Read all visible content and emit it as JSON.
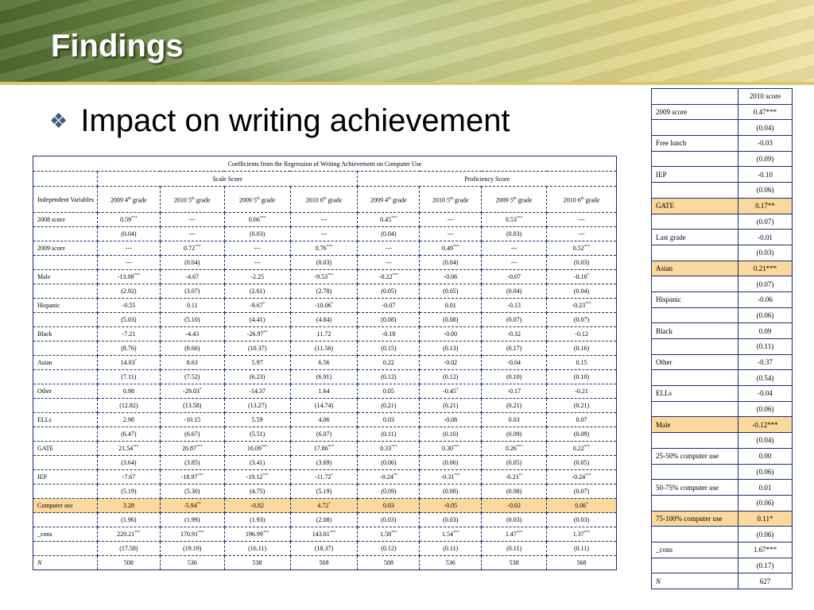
{
  "slide": {
    "title": "Findings",
    "bullet_icon": "diamond-bullet-icon",
    "bullet": "Impact on writing achievement",
    "accent": "#3c5a82",
    "highlight": "#fbd89b"
  },
  "main_table": {
    "caption": "Coefficients from the Regression of Writing Achievement on Computer Use",
    "groups": [
      "Scale Score",
      "Proficiency Score"
    ],
    "header": {
      "label": "Independent Variables",
      "columns": [
        {
          "pre": "2009 4",
          "sup": "th",
          "post": " grade"
        },
        {
          "pre": "2010 5",
          "sup": "th",
          "post": " grade"
        },
        {
          "pre": "2009 5",
          "sup": "th",
          "post": " grade"
        },
        {
          "pre": "2010 6",
          "sup": "th",
          "post": " grade"
        },
        {
          "pre": "2009 4",
          "sup": "th",
          "post": " grade"
        },
        {
          "pre": "2010 5",
          "sup": "th",
          "post": " grade"
        },
        {
          "pre": "2009 5",
          "sup": "th",
          "post": " grade"
        },
        {
          "pre": "2010 6",
          "sup": "th",
          "post": " grade"
        }
      ]
    },
    "rows": [
      {
        "label": "2008 score",
        "cells": [
          [
            "0.59",
            "***"
          ],
          [
            "---",
            ""
          ],
          [
            "0.66",
            "***"
          ],
          [
            "---",
            ""
          ],
          [
            "0.45",
            "***"
          ],
          [
            "---",
            ""
          ],
          [
            "0.53",
            "***"
          ],
          [
            "---",
            ""
          ]
        ]
      },
      {
        "label": "",
        "cells": [
          [
            "(0.04)",
            ""
          ],
          [
            "---",
            ""
          ],
          [
            "(0.03)",
            ""
          ],
          [
            "---",
            ""
          ],
          [
            "(0.04)",
            ""
          ],
          [
            "---",
            ""
          ],
          [
            "(0.03)",
            ""
          ],
          [
            "---",
            ""
          ]
        ]
      },
      {
        "label": "2009 score",
        "cells": [
          [
            "---",
            ""
          ],
          [
            "0.72",
            "***"
          ],
          [
            "---",
            ""
          ],
          [
            "0.76",
            "***"
          ],
          [
            "---",
            ""
          ],
          [
            "0.49",
            "***"
          ],
          [
            "---",
            ""
          ],
          [
            "0.52",
            "***"
          ]
        ]
      },
      {
        "label": "",
        "cells": [
          [
            "---",
            ""
          ],
          [
            "(0.04)",
            ""
          ],
          [
            "---",
            ""
          ],
          [
            "(0.03)",
            ""
          ],
          [
            "---",
            ""
          ],
          [
            "(0.04)",
            ""
          ],
          [
            "---",
            ""
          ],
          [
            "(0.03)",
            ""
          ]
        ]
      },
      {
        "label": "Male",
        "cells": [
          [
            "-13.08",
            "***"
          ],
          [
            "-4.67",
            ""
          ],
          [
            "-2.25",
            ""
          ],
          [
            "-9.53",
            "***"
          ],
          [
            "-0.22",
            "***"
          ],
          [
            "-0.06",
            ""
          ],
          [
            "-0.07",
            ""
          ],
          [
            "-0.10",
            "*"
          ]
        ]
      },
      {
        "label": "",
        "cells": [
          [
            "(2.92)",
            ""
          ],
          [
            "(3.07)",
            ""
          ],
          [
            "(2.61)",
            ""
          ],
          [
            "(2.78)",
            ""
          ],
          [
            "(0.05)",
            ""
          ],
          [
            "(0.05)",
            ""
          ],
          [
            "(0.04)",
            ""
          ],
          [
            "(0.04)",
            ""
          ]
        ]
      },
      {
        "label": "Hispanic",
        "cells": [
          [
            "-0.55",
            ""
          ],
          [
            "0.11",
            ""
          ],
          [
            "-9.67",
            "*"
          ],
          [
            "-10.06",
            "*"
          ],
          [
            "-0.07",
            ""
          ],
          [
            "0.01",
            ""
          ],
          [
            "-0.13",
            ""
          ],
          [
            "-0.23",
            "***"
          ]
        ]
      },
      {
        "label": "",
        "cells": [
          [
            "(5.03)",
            ""
          ],
          [
            "(5.10)",
            ""
          ],
          [
            "(4.41)",
            ""
          ],
          [
            "(4.84)",
            ""
          ],
          [
            "(0.08)",
            ""
          ],
          [
            "(0.08)",
            ""
          ],
          [
            "(0.07)",
            ""
          ],
          [
            "(0.07)",
            ""
          ]
        ]
      },
      {
        "label": "Black",
        "cells": [
          [
            "-7.21",
            ""
          ],
          [
            "-4.43",
            ""
          ],
          [
            "-26.97",
            "**"
          ],
          [
            "11.72",
            ""
          ],
          [
            "-0.18",
            ""
          ],
          [
            "-0.00",
            ""
          ],
          [
            "-0.32",
            ""
          ],
          [
            "-0.12",
            ""
          ]
        ]
      },
      {
        "label": "",
        "cells": [
          [
            "(8.76)",
            ""
          ],
          [
            "(8.66)",
            ""
          ],
          [
            "(10.37)",
            ""
          ],
          [
            "(11.56)",
            ""
          ],
          [
            "(0.15)",
            ""
          ],
          [
            "(0.13)",
            ""
          ],
          [
            "(0.17)",
            ""
          ],
          [
            "(0.16)",
            ""
          ]
        ]
      },
      {
        "label": "Asian",
        "cells": [
          [
            "14.03",
            "*"
          ],
          [
            "8.63",
            ""
          ],
          [
            "5.97",
            ""
          ],
          [
            "6.56",
            ""
          ],
          [
            "0.22",
            ""
          ],
          [
            "-0.02",
            ""
          ],
          [
            "-0.04",
            ""
          ],
          [
            "0.15",
            ""
          ]
        ]
      },
      {
        "label": "",
        "cells": [
          [
            "(7.11)",
            ""
          ],
          [
            "(7.52)",
            ""
          ],
          [
            "(6.23)",
            ""
          ],
          [
            "(6.91)",
            ""
          ],
          [
            "(0.12)",
            ""
          ],
          [
            "(0.12)",
            ""
          ],
          [
            "(0.10)",
            ""
          ],
          [
            "(0.10)",
            ""
          ]
        ]
      },
      {
        "label": "Other",
        "cells": [
          [
            "0.98",
            ""
          ],
          [
            "-29.03",
            "*"
          ],
          [
            "-14.37",
            ""
          ],
          [
            "1.64",
            ""
          ],
          [
            "0.05",
            ""
          ],
          [
            "-0.45",
            "*"
          ],
          [
            "-0.17",
            ""
          ],
          [
            "-0.21",
            ""
          ]
        ]
      },
      {
        "label": "",
        "cells": [
          [
            "(12.82)",
            ""
          ],
          [
            "(13.58)",
            ""
          ],
          [
            "(13.27)",
            ""
          ],
          [
            "(14.74)",
            ""
          ],
          [
            "(0.21)",
            ""
          ],
          [
            "(0.21)",
            ""
          ],
          [
            "(0.21)",
            ""
          ],
          [
            "(0.21)",
            ""
          ]
        ]
      },
      {
        "label": "ELLs",
        "cells": [
          [
            "2.98",
            ""
          ],
          [
            "-10.15",
            ""
          ],
          [
            "5.59",
            ""
          ],
          [
            "4.06",
            ""
          ],
          [
            "0.03",
            ""
          ],
          [
            "-0.08",
            ""
          ],
          [
            "0.03",
            ""
          ],
          [
            "0.07",
            ""
          ]
        ]
      },
      {
        "label": "",
        "cells": [
          [
            "(6.47)",
            ""
          ],
          [
            "(6.67)",
            ""
          ],
          [
            "(5.51)",
            ""
          ],
          [
            "(6.07)",
            ""
          ],
          [
            "(0.11)",
            ""
          ],
          [
            "(0.10)",
            ""
          ],
          [
            "(0.09)",
            ""
          ],
          [
            "(0.09)",
            ""
          ]
        ]
      },
      {
        "label": "GATE",
        "cells": [
          [
            "21.54",
            "***"
          ],
          [
            "20.87",
            "***"
          ],
          [
            "16.09",
            "***"
          ],
          [
            "17.86",
            "***"
          ],
          [
            "0.33",
            "***"
          ],
          [
            "0.30",
            "***"
          ],
          [
            "0.26",
            "***"
          ],
          [
            "0.22",
            "***"
          ]
        ]
      },
      {
        "label": "",
        "cells": [
          [
            "(3.64)",
            ""
          ],
          [
            "(3.85)",
            ""
          ],
          [
            "(3.41)",
            ""
          ],
          [
            "(3.69)",
            ""
          ],
          [
            "(0.06)",
            ""
          ],
          [
            "(0.06)",
            ""
          ],
          [
            "(0.05)",
            ""
          ],
          [
            "(0.05)",
            ""
          ]
        ]
      },
      {
        "label": "IEP",
        "cells": [
          [
            "-7.67",
            ""
          ],
          [
            "-18.97",
            "***"
          ],
          [
            "-19.12",
            "***"
          ],
          [
            "-11.72",
            "*"
          ],
          [
            "-0.24",
            "**"
          ],
          [
            "-0.31",
            "***"
          ],
          [
            "-0.23",
            "**"
          ],
          [
            "-0.24",
            "***"
          ]
        ]
      },
      {
        "label": "",
        "cells": [
          [
            "(5.19)",
            ""
          ],
          [
            "(5.30)",
            ""
          ],
          [
            "(4.75)",
            ""
          ],
          [
            "(5.19)",
            ""
          ],
          [
            "(0.09)",
            ""
          ],
          [
            "(0.08)",
            ""
          ],
          [
            "(0.08)",
            ""
          ],
          [
            "(0.07)",
            ""
          ]
        ]
      },
      {
        "label": "Computer use",
        "highlight": true,
        "cells": [
          [
            "3.28",
            ""
          ],
          [
            "-5.94",
            "**"
          ],
          [
            "-0.82",
            ""
          ],
          [
            "4.72",
            "*"
          ],
          [
            "0.03",
            ""
          ],
          [
            "-0.05",
            ""
          ],
          [
            "-0.02",
            ""
          ],
          [
            "0.06",
            "*"
          ]
        ]
      },
      {
        "label": "",
        "cells": [
          [
            "(1.96)",
            ""
          ],
          [
            "(1.99)",
            ""
          ],
          [
            "(1.93)",
            ""
          ],
          [
            "(2.08)",
            ""
          ],
          [
            "(0.03)",
            ""
          ],
          [
            "(0.03)",
            ""
          ],
          [
            "(0.03)",
            ""
          ],
          [
            "(0.03)",
            ""
          ]
        ]
      },
      {
        "label": "_cons",
        "cells": [
          [
            "220.21",
            "***"
          ],
          [
            "170.91",
            "***"
          ],
          [
            "196.99",
            "***"
          ],
          [
            "143.81",
            "***"
          ],
          [
            "1.58",
            "***"
          ],
          [
            "1.54",
            "***"
          ],
          [
            "1.47",
            "***"
          ],
          [
            "1.37",
            "***"
          ]
        ]
      },
      {
        "label": "",
        "cells": [
          [
            "(17.58)",
            ""
          ],
          [
            "(19.19)",
            ""
          ],
          [
            "(16.11)",
            ""
          ],
          [
            "(18.37)",
            ""
          ],
          [
            "(0.12)",
            ""
          ],
          [
            "(0.11)",
            ""
          ],
          [
            "(0.11)",
            ""
          ],
          [
            "(0.11)",
            ""
          ]
        ]
      },
      {
        "label": "N",
        "italic": true,
        "cells": [
          [
            "508",
            ""
          ],
          [
            "536",
            ""
          ],
          [
            "538",
            ""
          ],
          [
            "568",
            ""
          ],
          [
            "508",
            ""
          ],
          [
            "536",
            ""
          ],
          [
            "538",
            ""
          ],
          [
            "568",
            ""
          ]
        ]
      }
    ]
  },
  "side_table": {
    "header": "2010 score",
    "rows": [
      {
        "label": "2009 score",
        "value": "0.47***"
      },
      {
        "label": "",
        "value": "(0.04)"
      },
      {
        "label": "Free lunch",
        "value": "-0.03"
      },
      {
        "label": "",
        "value": "(0.09)"
      },
      {
        "label": "IEP",
        "value": "-0.10"
      },
      {
        "label": "",
        "value": "(0.06)"
      },
      {
        "label": "GATE",
        "value": "0.17**",
        "highlight": true
      },
      {
        "label": "",
        "value": "(0.07)"
      },
      {
        "label": "Last grade",
        "value": "-0.01"
      },
      {
        "label": "",
        "value": "(0.03)"
      },
      {
        "label": "Asian",
        "value": "0.21***",
        "highlight": true
      },
      {
        "label": "",
        "value": "(0.07)"
      },
      {
        "label": "Hispanic",
        "value": "-0.06"
      },
      {
        "label": "",
        "value": "(0.06)"
      },
      {
        "label": "Black",
        "value": "0.09"
      },
      {
        "label": "",
        "value": "(0.11)"
      },
      {
        "label": "Other",
        "value": "-0.37"
      },
      {
        "label": "",
        "value": "(0.54)"
      },
      {
        "label": "ELLs",
        "value": "-0.04"
      },
      {
        "label": "",
        "value": "(0.06)"
      },
      {
        "label": "Male",
        "value": "-0.12***",
        "highlight": true
      },
      {
        "label": "",
        "value": "(0.04)"
      },
      {
        "label": "25-50% computer use",
        "value": "0.00"
      },
      {
        "label": "",
        "value": "(0.06)"
      },
      {
        "label": "50-75% computer use",
        "value": "0.01"
      },
      {
        "label": "",
        "value": "(0.06)"
      },
      {
        "label": "75-100% computer use",
        "value": "0.11*",
        "highlight": true
      },
      {
        "label": "",
        "value": "(0.06)"
      },
      {
        "label": "_cons",
        "value": "1.67***"
      },
      {
        "label": "",
        "value": "(0.17)"
      },
      {
        "label": "N",
        "value": "627",
        "italic": true
      }
    ]
  }
}
